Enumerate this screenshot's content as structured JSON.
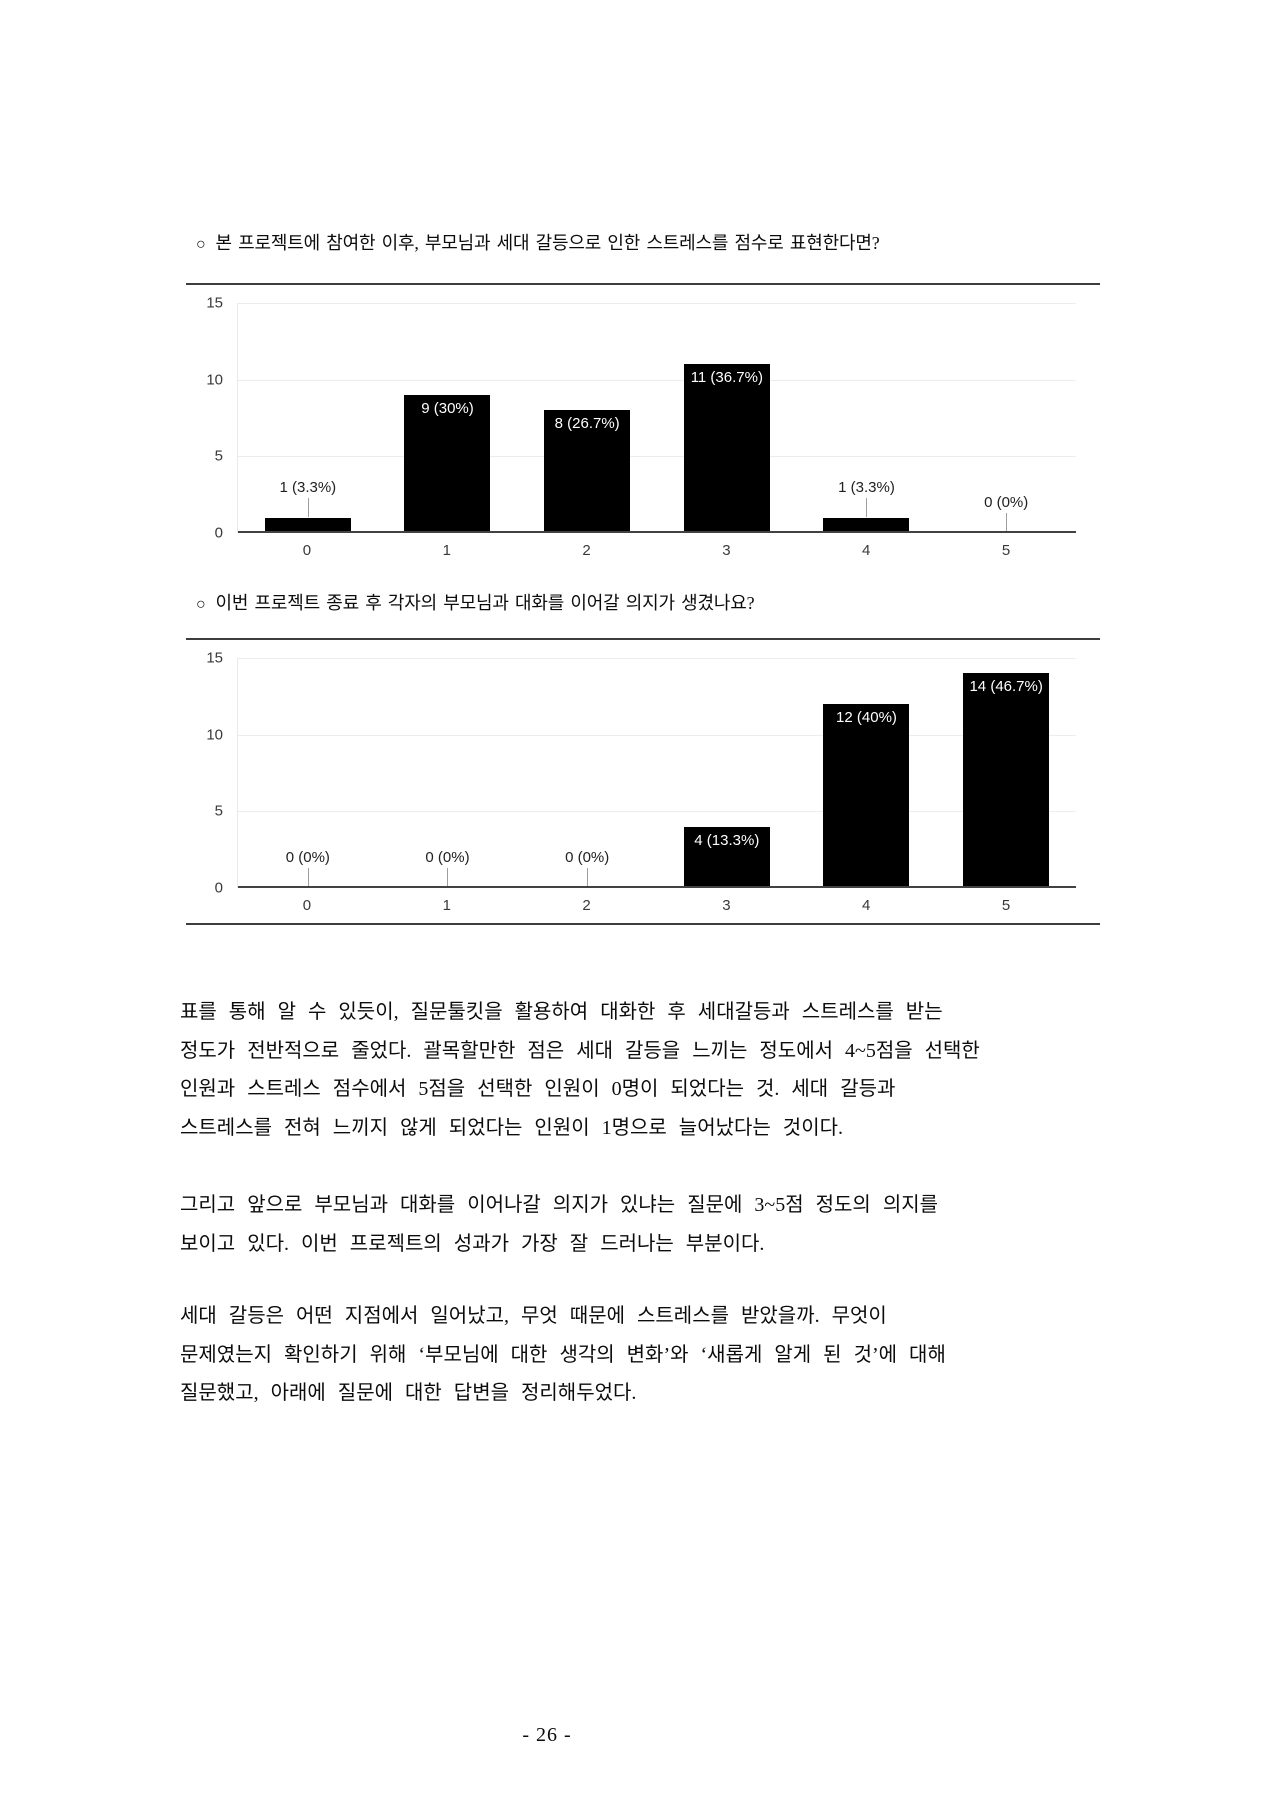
{
  "chart_data": [
    {
      "type": "bar",
      "bullet": "○",
      "title": "본 프로젝트에 참여한 이후, 부모님과 세대 갈등으로 인한 스트레스를 점수로 표현한다면?",
      "categories": [
        "0",
        "1",
        "2",
        "3",
        "4",
        "5"
      ],
      "values": [
        1,
        9,
        8,
        11,
        1,
        0
      ],
      "labels": [
        "1 (3.3%)",
        "9 (30%)",
        "8 (26.7%)",
        "11 (36.7%)",
        "1 (3.3%)",
        "0 (0%)"
      ],
      "ylim": [
        0,
        15
      ],
      "yticks": [
        15,
        10,
        5,
        0
      ],
      "xlabel": "",
      "ylabel": "",
      "grid": true,
      "legend": "none",
      "bar_color": "#000000"
    },
    {
      "type": "bar",
      "bullet": "○",
      "title": "이번 프로젝트 종료 후 각자의 부모님과 대화를 이어갈 의지가 생겼나요?",
      "categories": [
        "0",
        "1",
        "2",
        "3",
        "4",
        "5"
      ],
      "values": [
        0,
        0,
        0,
        4,
        12,
        14
      ],
      "labels": [
        "0 (0%)",
        "0 (0%)",
        "0 (0%)",
        "4 (13.3%)",
        "12 (40%)",
        "14 (46.7%)"
      ],
      "ylim": [
        0,
        15
      ],
      "yticks": [
        15,
        10,
        5,
        0
      ],
      "xlabel": "",
      "ylabel": "",
      "grid": true,
      "legend": "none",
      "bar_color": "#000000"
    }
  ],
  "paragraphs": [
    {
      "lines": [
        "표를 통해 알 수 있듯이, 질문툴킷을 활용하여 대화한 후 세대갈등과 스트레스를 받는",
        "정도가 전반적으로 줄었다. 괄목할만한 점은 세대 갈등을 느끼는 정도에서 4~5점을 선택한",
        "인원과 스트레스 점수에서 5점을 선택한 인원이 0명이 되었다는 것. 세대 갈등과",
        "스트레스를 전혀 느끼지 않게 되었다는 인원이 1명으로 늘어났다는 것이다."
      ]
    },
    {
      "lines": [
        "그리고 앞으로 부모님과 대화를 이어나갈 의지가 있냐는 질문에 3~5점 정도의 의지를",
        "보이고 있다. 이번 프로젝트의 성과가 가장 잘 드러나는 부분이다."
      ]
    },
    {
      "lines": [
        "세대 갈등은 어떤 지점에서 일어났고, 무엇 때문에 스트레스를 받았을까. 무엇이",
        "문제였는지 확인하기 위해 ‘부모님에 대한 생각의 변화’와 ‘새롭게 알게 된 것’에 대해",
        "질문했고, 아래에 질문에 대한 답변을 정리해두었다."
      ]
    }
  ],
  "page_number": "- 26 -"
}
